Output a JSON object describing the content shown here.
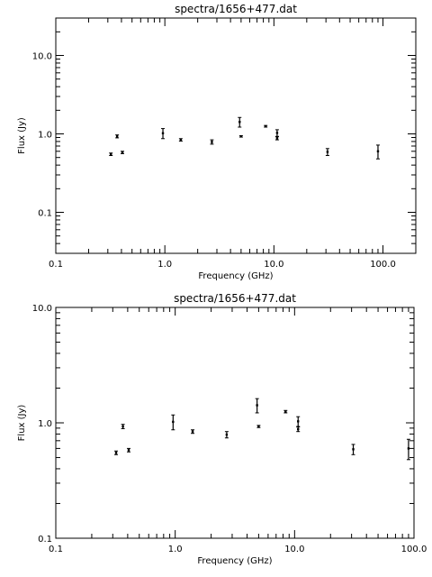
{
  "chart_data": [
    {
      "type": "scatter",
      "title": "spectra/1656+477.dat",
      "xlabel": "Frequency (GHz)",
      "ylabel": "Flux (Jy)",
      "xscale": "log",
      "yscale": "log",
      "xlim": [
        0.1,
        200
      ],
      "ylim": [
        0.03,
        30
      ],
      "x_tick_labels": [
        {
          "v": 0.1,
          "label": "0.1"
        },
        {
          "v": 1,
          "label": "1.0"
        },
        {
          "v": 10,
          "label": "10.0"
        },
        {
          "v": 100,
          "label": "100.0"
        }
      ],
      "y_tick_labels": [
        {
          "v": 0.1,
          "label": "0.1"
        },
        {
          "v": 1,
          "label": "1.0"
        },
        {
          "v": 10,
          "label": "10.0"
        }
      ],
      "grid": false,
      "series": [
        {
          "points": [
            {
              "x": 0.32,
              "y": 0.55,
              "err": 0.02
            },
            {
              "x": 0.365,
              "y": 0.93,
              "err": 0.04
            },
            {
              "x": 0.408,
              "y": 0.58,
              "err": 0.02
            },
            {
              "x": 0.96,
              "y": 1.02,
              "err": 0.15
            },
            {
              "x": 1.4,
              "y": 0.84,
              "err": 0.03
            },
            {
              "x": 2.7,
              "y": 0.79,
              "err": 0.05
            },
            {
              "x": 4.85,
              "y": 1.42,
              "err": 0.2
            },
            {
              "x": 5.0,
              "y": 0.93,
              "err": 0.02
            },
            {
              "x": 8.4,
              "y": 1.25,
              "err": 0.03
            },
            {
              "x": 10.7,
              "y": 1.03,
              "err": 0.1
            },
            {
              "x": 10.7,
              "y": 0.88,
              "err": 0.04
            },
            {
              "x": 31,
              "y": 0.59,
              "err": 0.06
            },
            {
              "x": 90,
              "y": 0.6,
              "err": 0.12
            }
          ]
        }
      ]
    },
    {
      "type": "scatter",
      "title": "spectra/1656+477.dat",
      "xlabel": "Frequency (GHz)",
      "ylabel": "Flux (Jy)",
      "xscale": "log",
      "yscale": "log",
      "xlim": [
        0.1,
        100
      ],
      "ylim": [
        0.1,
        10
      ],
      "x_tick_labels": [
        {
          "v": 0.1,
          "label": "0.1"
        },
        {
          "v": 1,
          "label": "1.0"
        },
        {
          "v": 10,
          "label": "10.0"
        },
        {
          "v": 100,
          "label": "100.0"
        }
      ],
      "y_tick_labels": [
        {
          "v": 0.1,
          "label": "0.1"
        },
        {
          "v": 1,
          "label": "1.0"
        },
        {
          "v": 10,
          "label": "10.0"
        }
      ],
      "grid": false,
      "series": [
        {
          "points": [
            {
              "x": 0.32,
              "y": 0.55,
              "err": 0.02
            },
            {
              "x": 0.365,
              "y": 0.93,
              "err": 0.04
            },
            {
              "x": 0.408,
              "y": 0.58,
              "err": 0.02
            },
            {
              "x": 0.96,
              "y": 1.02,
              "err": 0.15
            },
            {
              "x": 1.4,
              "y": 0.84,
              "err": 0.03
            },
            {
              "x": 2.7,
              "y": 0.79,
              "err": 0.05
            },
            {
              "x": 4.85,
              "y": 1.42,
              "err": 0.2
            },
            {
              "x": 5.0,
              "y": 0.93,
              "err": 0.02
            },
            {
              "x": 8.4,
              "y": 1.25,
              "err": 0.03
            },
            {
              "x": 10.7,
              "y": 1.03,
              "err": 0.1
            },
            {
              "x": 10.7,
              "y": 0.88,
              "err": 0.04
            },
            {
              "x": 31,
              "y": 0.59,
              "err": 0.06
            },
            {
              "x": 90,
              "y": 0.6,
              "err": 0.12
            }
          ]
        }
      ]
    }
  ]
}
